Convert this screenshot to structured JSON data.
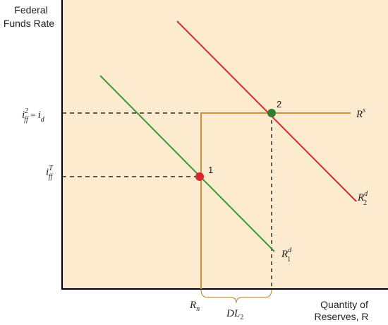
{
  "axes": {
    "y_title_line1": "Federal",
    "y_title_line2": "Funds Rate",
    "x_title_line1": "Quantity of",
    "x_title_line2": "Reserves, R"
  },
  "labels": {
    "i_d": {
      "main": "i",
      "sup": "2",
      "sub": "ff",
      "eq": " = ",
      "rhs_main": "i",
      "rhs_sub": "d"
    },
    "i_ff_target": {
      "main": "i",
      "sup": "T",
      "sub": "ff"
    },
    "r_n": {
      "main": "R",
      "sub": "n"
    },
    "dl2": {
      "main": "DL",
      "sub": "2"
    },
    "supply": {
      "main": "R",
      "sup": "s"
    },
    "demand2": {
      "main": "R",
      "sup": "d",
      "sub": "2"
    },
    "demand1": {
      "main": "R",
      "sup": "d",
      "sub": "1"
    }
  },
  "points": [
    {
      "id": "point-1",
      "label": "1",
      "color": "#d7262d"
    },
    {
      "id": "point-2",
      "label": "2",
      "color": "#2e7d32"
    }
  ],
  "colors": {
    "plot_bg": "#fdebcf",
    "supply": "#c8923f",
    "demand1": "#3a9b35",
    "demand2": "#d42a2a",
    "axis": "#000000",
    "dashed": "#000000"
  }
}
